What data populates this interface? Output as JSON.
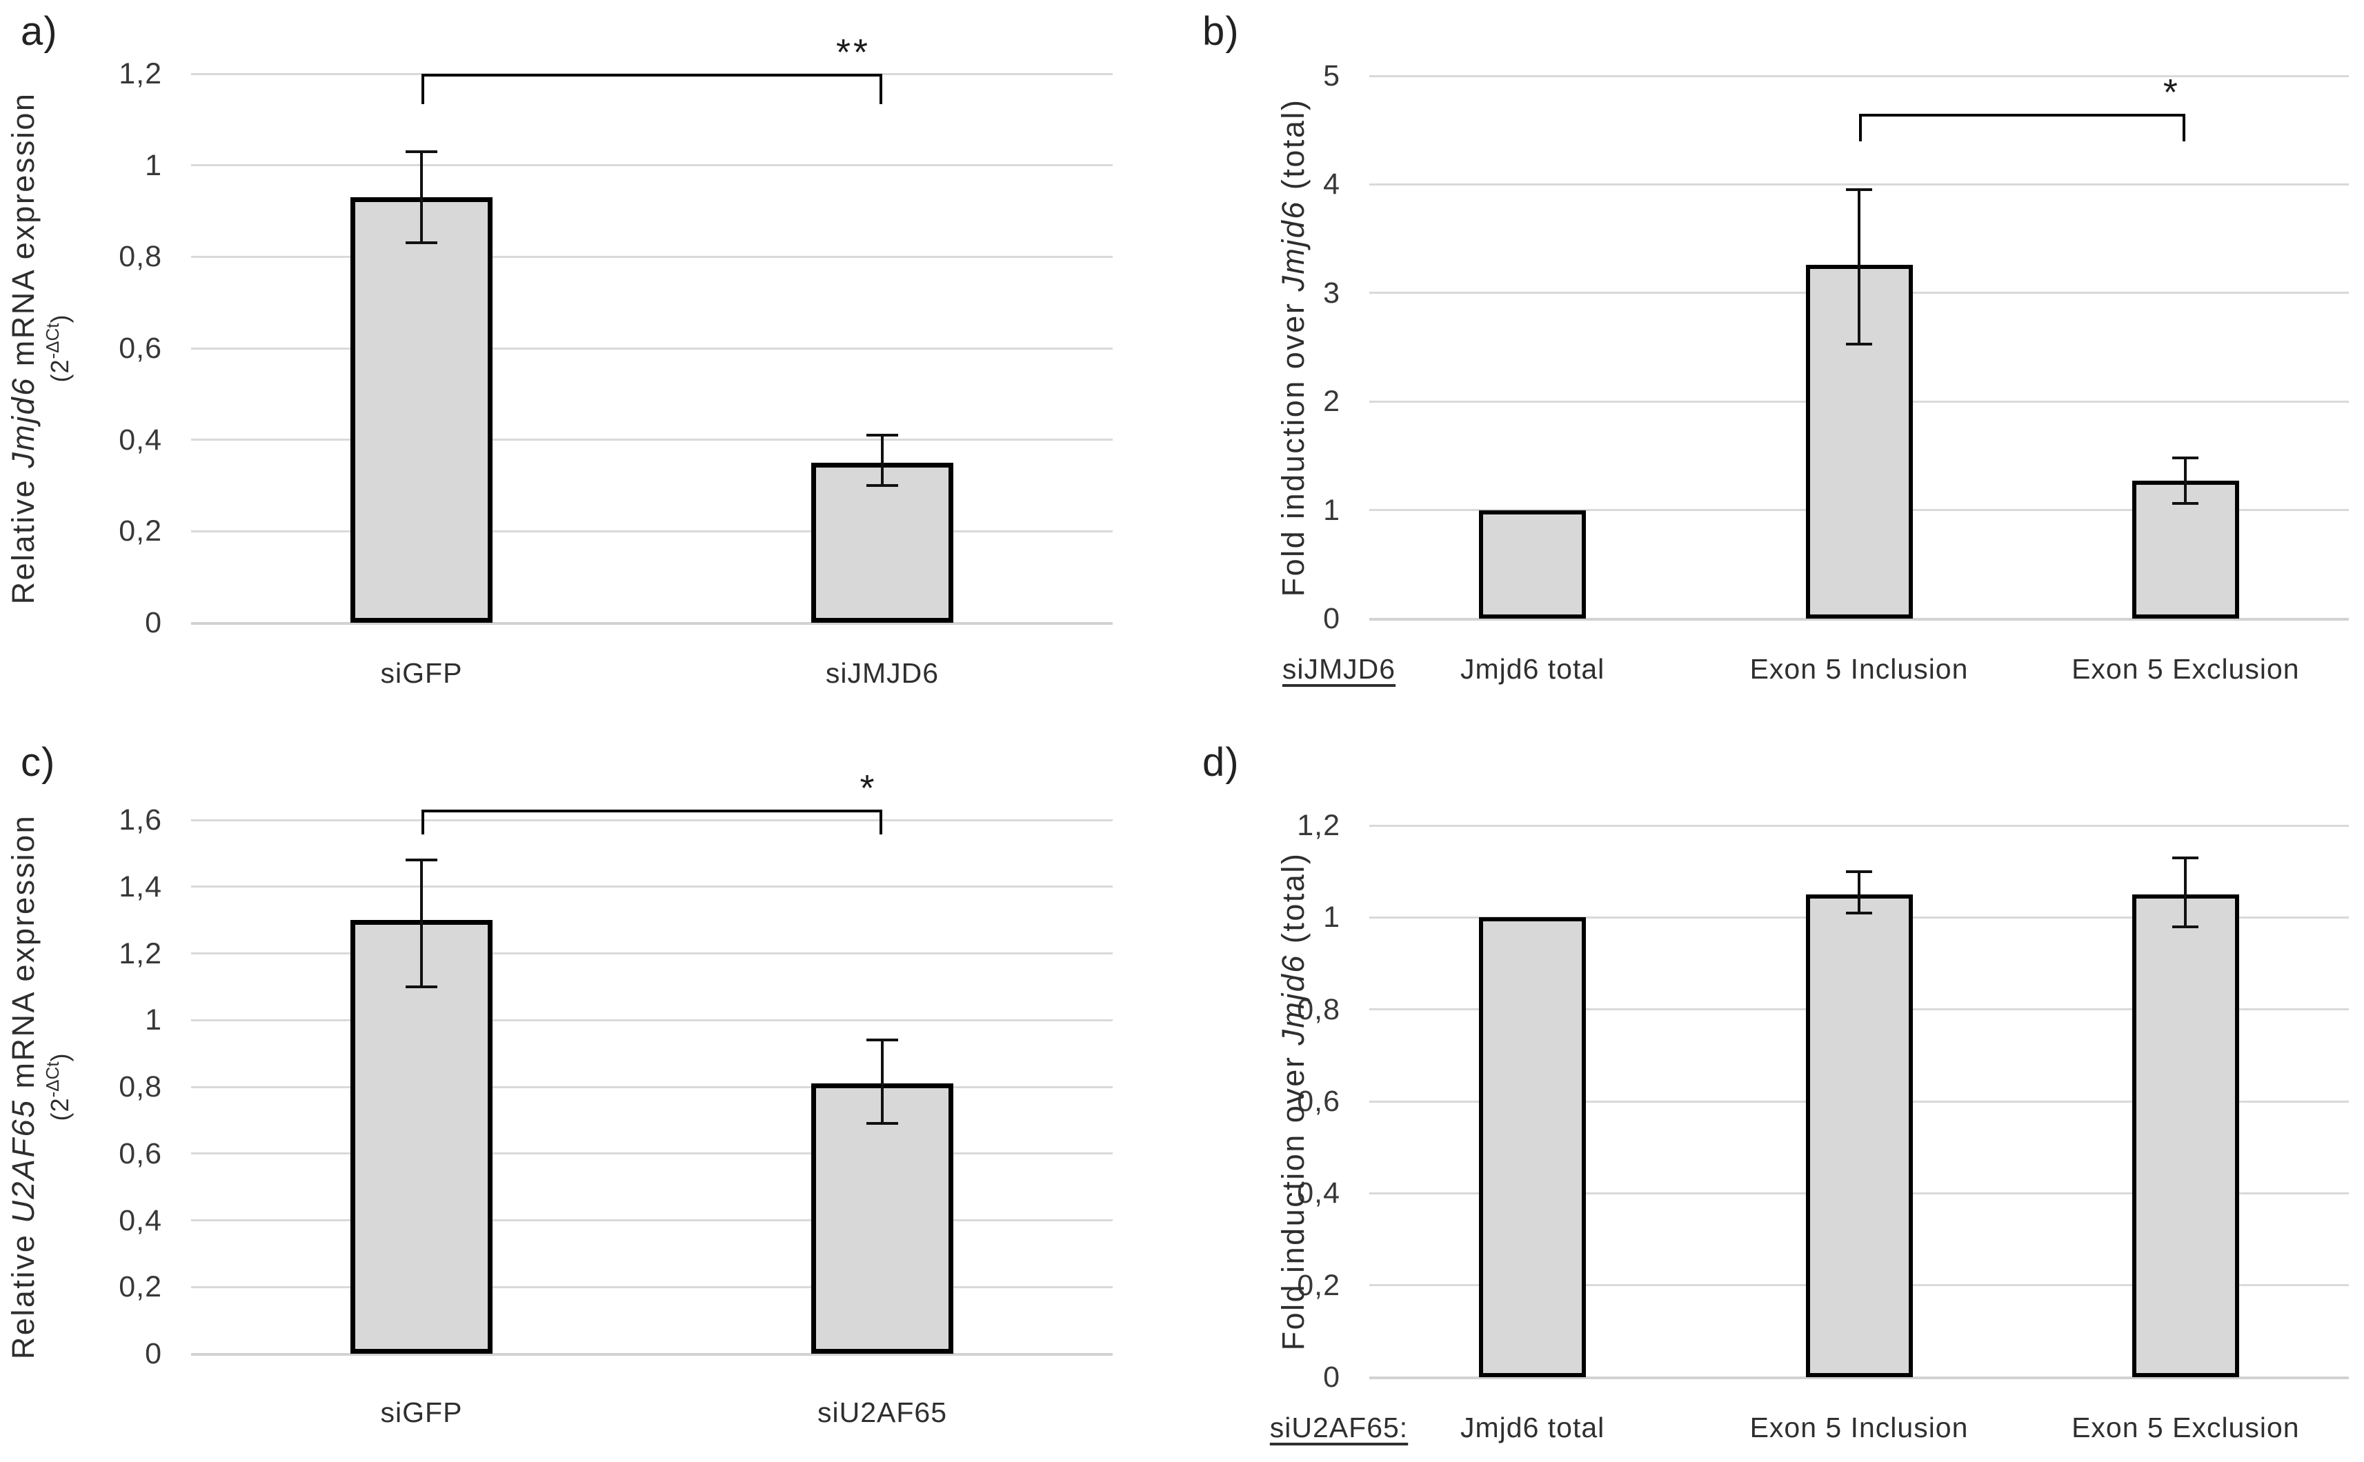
{
  "colors": {
    "bar_fill": "#d8d8d8",
    "bar_border": "#000000",
    "gridline": "#d9d9d9",
    "text": "#2e2e2e"
  },
  "chart_data": [
    {
      "type": "bar",
      "panel_label": "a)",
      "title": "",
      "xlabel": "",
      "ylabel": "Relative Jmjd6 mRNA expression (2^-ΔCt)",
      "ylabel_segments": [
        {
          "t": "Relative "
        },
        {
          "t": "Jmjd6",
          "i": true
        },
        {
          "t": " mRNA expression"
        }
      ],
      "ylabel_line2": [
        {
          "t": "(2"
        },
        {
          "t": "-ΔCt",
          "sup": true
        },
        {
          "t": ")"
        }
      ],
      "categories": [
        "siGFP",
        "siJMJD6"
      ],
      "values": [
        0.93,
        0.35
      ],
      "error_low": [
        0.83,
        0.3
      ],
      "error_high": [
        1.03,
        0.41
      ],
      "ylim": [
        0,
        1.2
      ],
      "grid": true,
      "yticks": [
        {
          "v": 1.2,
          "label": "1,2"
        },
        {
          "v": 1.0,
          "label": "1"
        },
        {
          "v": 0.8,
          "label": "0,8"
        },
        {
          "v": 0.6,
          "label": "0,6"
        },
        {
          "v": 0.4,
          "label": "0,4"
        },
        {
          "v": 0.2,
          "label": "0,2"
        },
        {
          "v": 0.0,
          "label": "0"
        }
      ],
      "axis_prefix": null,
      "significance": {
        "from": 0,
        "to": 1,
        "label": "**",
        "y": 1.2
      }
    },
    {
      "type": "bar",
      "panel_label": "b)",
      "title": "",
      "xlabel": "",
      "ylabel": "Fold induction over Jmjd6 (total)",
      "ylabel_segments": [
        {
          "t": "Fold induction over "
        },
        {
          "t": "Jmjd6",
          "i": true
        },
        {
          "t": " (total)"
        }
      ],
      "ylabel_line2": null,
      "categories": [
        "Jmjd6 total",
        "Exon 5 Inclusion",
        "Exon 5 Exclusion"
      ],
      "values": [
        1.0,
        3.26,
        1.27
      ],
      "error_low": [
        null,
        2.53,
        1.06
      ],
      "error_high": [
        null,
        3.95,
        1.48
      ],
      "ylim": [
        0,
        5
      ],
      "grid": true,
      "yticks": [
        {
          "v": 5,
          "label": "5"
        },
        {
          "v": 4,
          "label": "4"
        },
        {
          "v": 3,
          "label": "3"
        },
        {
          "v": 2,
          "label": "2"
        },
        {
          "v": 1,
          "label": "1"
        },
        {
          "v": 0,
          "label": "0"
        }
      ],
      "axis_prefix": {
        "text": "siJMJD6"
      },
      "significance": {
        "from": 1,
        "to": 2,
        "label": "*",
        "y": 4.65
      }
    },
    {
      "type": "bar",
      "panel_label": "c)",
      "title": "",
      "xlabel": "",
      "ylabel": "Relative U2AF65 mRNA expression (2^-ΔCt)",
      "ylabel_segments": [
        {
          "t": "Relative "
        },
        {
          "t": "U2AF65",
          "i": true
        },
        {
          "t": " mRNA expression"
        }
      ],
      "ylabel_line2": [
        {
          "t": "(2"
        },
        {
          "t": "-ΔCt",
          "sup": true
        },
        {
          "t": ")"
        }
      ],
      "categories": [
        "siGFP",
        "siU2AF65"
      ],
      "values": [
        1.3,
        0.81
      ],
      "error_low": [
        1.1,
        0.69
      ],
      "error_high": [
        1.48,
        0.94
      ],
      "ylim": [
        0,
        1.6
      ],
      "grid": true,
      "yticks": [
        {
          "v": 1.6,
          "label": "1,6"
        },
        {
          "v": 1.4,
          "label": "1,4"
        },
        {
          "v": 1.2,
          "label": "1,2"
        },
        {
          "v": 1.0,
          "label": "1"
        },
        {
          "v": 0.8,
          "label": "0,8"
        },
        {
          "v": 0.6,
          "label": "0,6"
        },
        {
          "v": 0.4,
          "label": "0,4"
        },
        {
          "v": 0.2,
          "label": "0,2"
        },
        {
          "v": 0.0,
          "label": "0"
        }
      ],
      "axis_prefix": null,
      "significance": {
        "from": 0,
        "to": 1,
        "label": "*",
        "y": 1.63
      }
    },
    {
      "type": "bar",
      "panel_label": "d)",
      "title": "",
      "xlabel": "",
      "ylabel": "Fold induction over Jmjd6 (total)",
      "ylabel_segments": [
        {
          "t": "Fold induction over "
        },
        {
          "t": "Jmjd6",
          "i": true
        },
        {
          "t": " (total)"
        }
      ],
      "ylabel_line2": null,
      "categories": [
        "Jmjd6 total",
        "Exon 5 Inclusion",
        "Exon 5 Exclusion"
      ],
      "values": [
        1.0,
        1.05,
        1.05
      ],
      "error_low": [
        null,
        1.01,
        0.98
      ],
      "error_high": [
        null,
        1.1,
        1.13
      ],
      "ylim": [
        0,
        1.2
      ],
      "grid": true,
      "yticks": [
        {
          "v": 1.2,
          "label": "1,2"
        },
        {
          "v": 1.0,
          "label": "1"
        },
        {
          "v": 0.8,
          "label": "0,8"
        },
        {
          "v": 0.6,
          "label": "0,6"
        },
        {
          "v": 0.4,
          "label": "0,4"
        },
        {
          "v": 0.2,
          "label": "0,2"
        },
        {
          "v": 0.0,
          "label": "0"
        }
      ],
      "axis_prefix": {
        "text": "siU2AF65:"
      },
      "significance": null
    }
  ]
}
